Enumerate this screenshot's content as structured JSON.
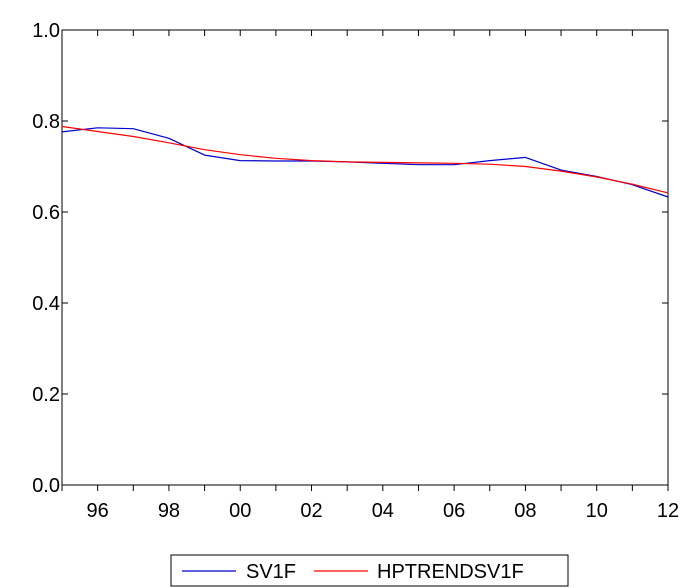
{
  "chart_data": {
    "type": "line",
    "title": "",
    "xlabel": "",
    "ylabel": "",
    "x": [
      1995,
      1996,
      1997,
      1998,
      1999,
      2000,
      2001,
      2002,
      2003,
      2004,
      2005,
      2006,
      2007,
      2008,
      2009,
      2010,
      2011,
      2012
    ],
    "xlim": [
      1995,
      2012
    ],
    "ylim": [
      0.0,
      1.0
    ],
    "y_ticks": [
      "0.0",
      "0.2",
      "0.4",
      "0.6",
      "0.8",
      "1.0"
    ],
    "x_ticks": [
      {
        "x": 1996,
        "label": "96"
      },
      {
        "x": 1998,
        "label": "98"
      },
      {
        "x": 2000,
        "label": "00"
      },
      {
        "x": 2002,
        "label": "02"
      },
      {
        "x": 2004,
        "label": "04"
      },
      {
        "x": 2006,
        "label": "06"
      },
      {
        "x": 2008,
        "label": "08"
      },
      {
        "x": 2010,
        "label": "10"
      },
      {
        "x": 2012,
        "label": "12"
      }
    ],
    "grid": false,
    "legend_position": "bottom",
    "series": [
      {
        "name": "SV1F",
        "color": "#0000cc",
        "values": [
          0.776,
          0.785,
          0.783,
          0.762,
          0.725,
          0.713,
          0.712,
          0.712,
          0.71,
          0.707,
          0.704,
          0.704,
          0.713,
          0.72,
          0.692,
          0.678,
          0.66,
          0.633
        ]
      },
      {
        "name": "HPTRENDSV1F",
        "color": "#ff0000",
        "values": [
          0.788,
          0.777,
          0.766,
          0.752,
          0.737,
          0.726,
          0.718,
          0.713,
          0.71,
          0.709,
          0.708,
          0.707,
          0.705,
          0.7,
          0.69,
          0.677,
          0.661,
          0.642
        ]
      }
    ]
  }
}
